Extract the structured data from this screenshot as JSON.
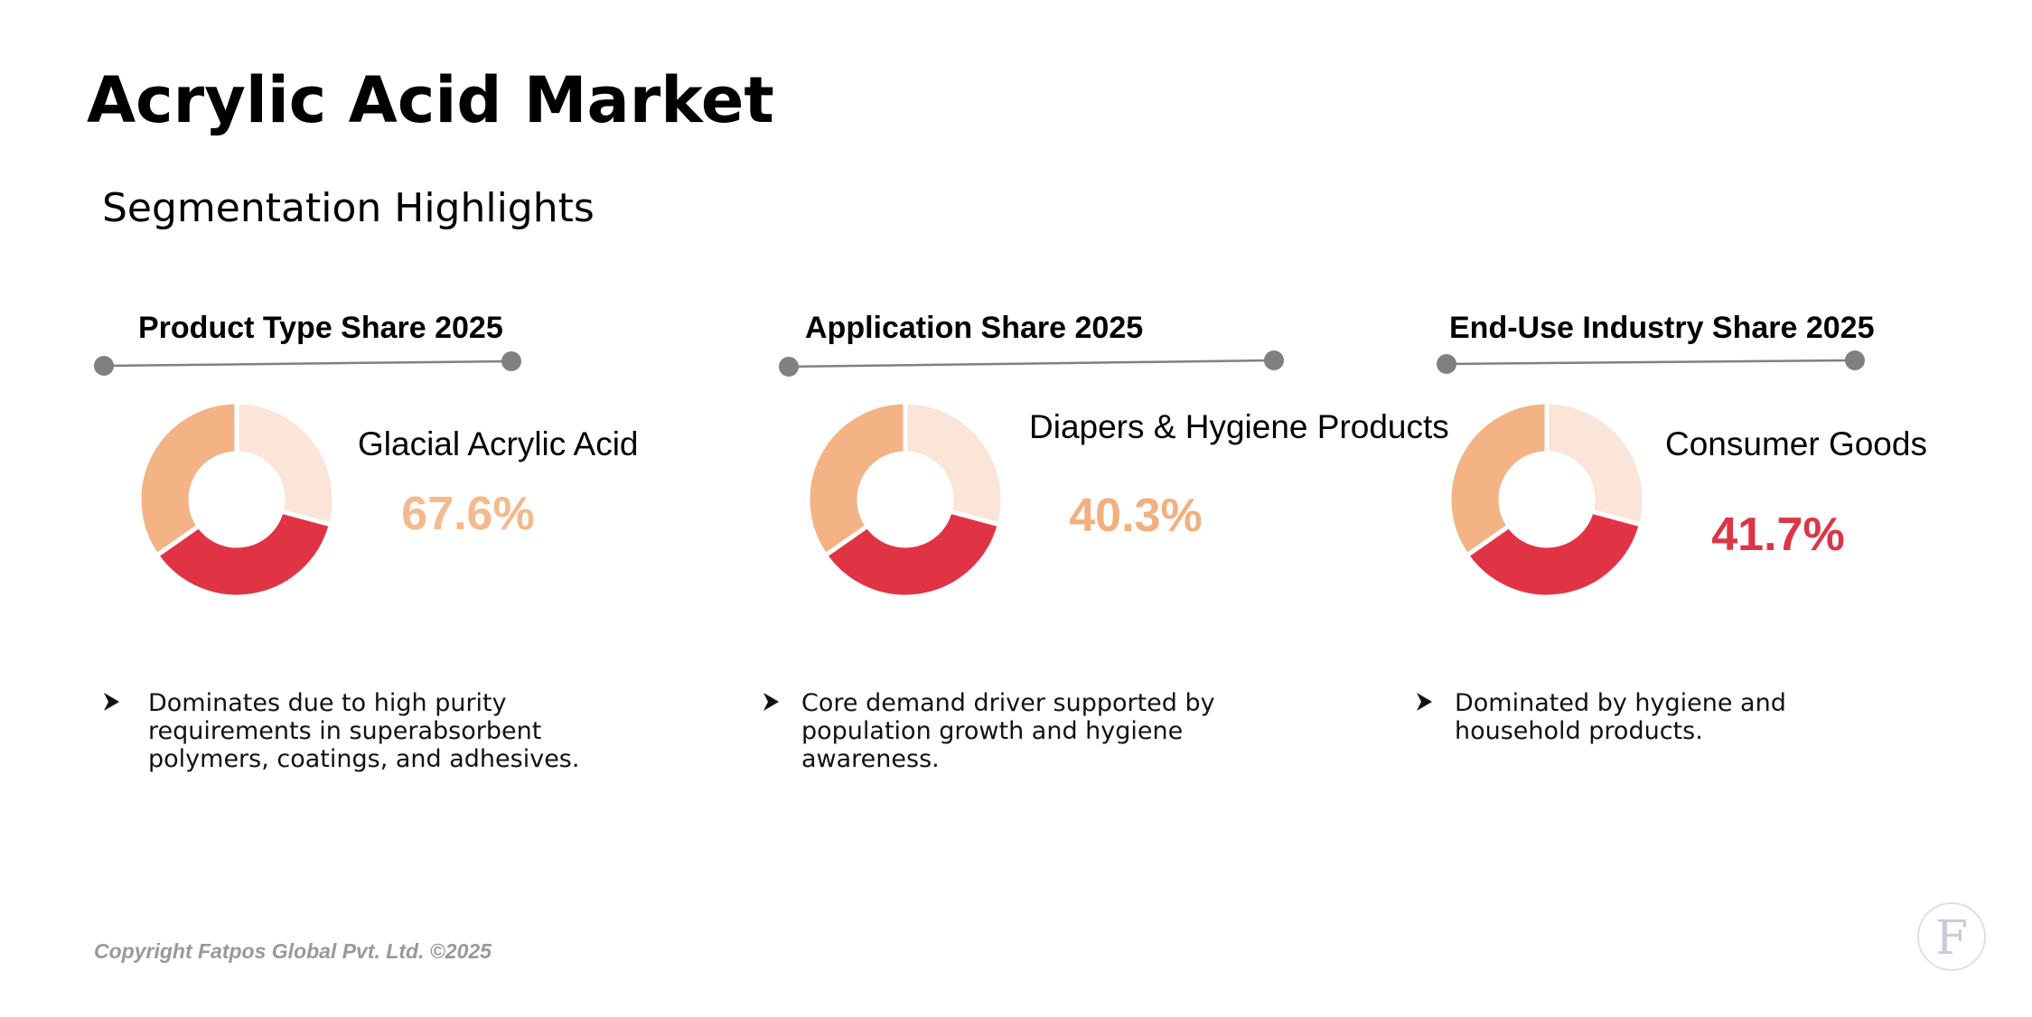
{
  "header": {
    "title": "Acrylic Acid Market",
    "subtitle": "Segmentation Highlights"
  },
  "segments": [
    {
      "heading": "Product Type Share 2025",
      "label": "Glacial Acrylic Acid",
      "share": "67.6%",
      "bullet": [
        "Dominates due to high purity",
        "requirements in superabsorbent",
        "polymers, coatings, and adhesives."
      ]
    },
    {
      "heading": "Application Share 2025",
      "label": "Diapers & Hygiene Products",
      "share": "40.3%",
      "bullet": [
        "Core demand driver supported by",
        "population growth and hygiene",
        "awareness."
      ]
    },
    {
      "heading": "End-Use Industry Share 2025",
      "label": "Consumer Goods",
      "share": "41.7%",
      "bullet": [
        "Dominated by hygiene and",
        "household products."
      ]
    }
  ],
  "footer": {
    "copyright": "Copyright Fatpos Global Pvt. Ltd. ©2025",
    "logo": "F"
  }
}
